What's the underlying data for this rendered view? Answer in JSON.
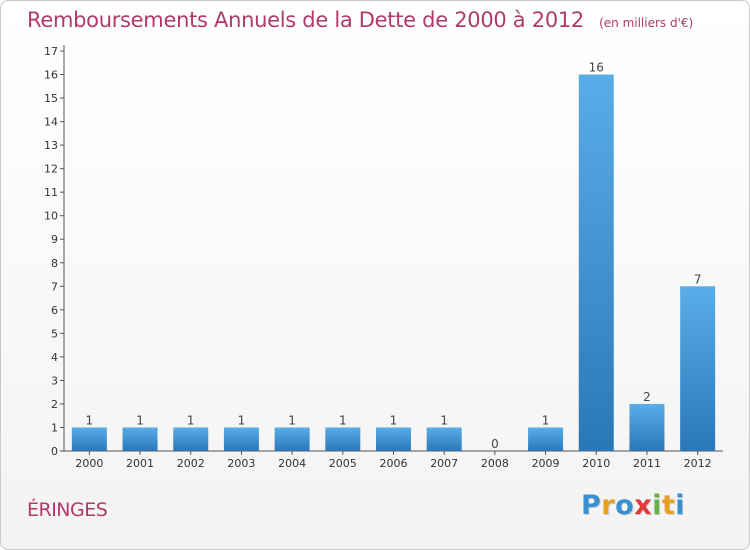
{
  "chart_data": {
    "type": "bar",
    "title": "Remboursements Annuels de la Dette de 2000 à 2012",
    "unit": "(en milliers d'€)",
    "categories": [
      "2000",
      "2001",
      "2002",
      "2003",
      "2004",
      "2005",
      "2006",
      "2007",
      "2008",
      "2009",
      "2010",
      "2011",
      "2012"
    ],
    "values": [
      1,
      1,
      1,
      1,
      1,
      1,
      1,
      1,
      0,
      1,
      16,
      2,
      7
    ],
    "ylim": [
      0,
      17
    ],
    "yticks": [
      0,
      1,
      2,
      3,
      4,
      5,
      6,
      7,
      8,
      9,
      10,
      11,
      12,
      13,
      14,
      15,
      16,
      17
    ],
    "grid": false,
    "legend": "none",
    "bar_color_top": "#5aade8",
    "bar_color_bottom": "#2a77b8"
  },
  "commune": "ÉRINGES",
  "logo": {
    "letters": [
      "P",
      "r",
      "o",
      "x",
      "i",
      "t",
      "i"
    ],
    "colors": [
      "#3a8fd0",
      "#e8a020",
      "#3a8fd0",
      "#e03a3a",
      "#6ab04c",
      "#e8a020",
      "#3a8fd0"
    ]
  },
  "colors": {
    "title": "#b03a6a",
    "axis": "#555555"
  }
}
